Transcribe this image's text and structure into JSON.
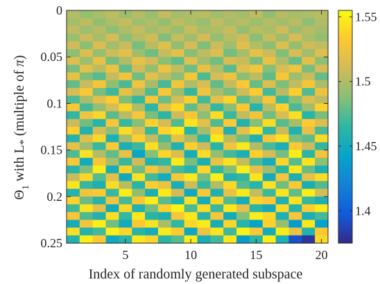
{
  "chart_data": {
    "type": "heatmap",
    "title": "",
    "xlabel": "Index of randomly generated subspace",
    "ylabel": {
      "theta": "Θ",
      "theta_sub": "1",
      "middle": " with L",
      "l_sub": "*",
      "suffix": " (multiple of ",
      "pi": "π",
      "close": ")"
    },
    "x_range": [
      1,
      20
    ],
    "x_ticks": [
      {
        "value": 5,
        "label": "5"
      },
      {
        "value": 10,
        "label": "10"
      },
      {
        "value": 15,
        "label": "15"
      },
      {
        "value": 20,
        "label": "20"
      }
    ],
    "y_range": [
      0,
      0.25
    ],
    "y_ticks": [
      {
        "value": 0,
        "label": "0"
      },
      {
        "value": 0.05,
        "label": "0.05"
      },
      {
        "value": 0.1,
        "label": "0.1"
      },
      {
        "value": 0.15,
        "label": "0.15"
      },
      {
        "value": 0.2,
        "label": "0.2"
      },
      {
        "value": 0.25,
        "label": "0.25"
      }
    ],
    "y_reversed": true,
    "grid": false,
    "colormap": "parula",
    "colormap_stops": [
      "#352a87",
      "#0f5cdd",
      "#1481d6",
      "#06a4ca",
      "#2eb7a4",
      "#87bf77",
      "#d1bb59",
      "#fec832",
      "#f9fb0e"
    ],
    "color_range": [
      1.375,
      1.555
    ],
    "colorbar": {
      "location": "right",
      "ticks": [
        {
          "value": 1.4,
          "label": "1.4"
        },
        {
          "value": 1.45,
          "label": "1.45"
        },
        {
          "value": 1.5,
          "label": "1.5"
        },
        {
          "value": 1.55,
          "label": "1.55"
        }
      ]
    },
    "n_rows": 30,
    "n_cols": 20,
    "row_dtheta": 0.00862,
    "column_offsets": [
      0.004,
      -0.008,
      0.002,
      0.006,
      -0.005,
      0.003,
      -0.006,
      0.008,
      0.005,
      -0.004,
      0.002,
      0.006,
      -0.007,
      0.004,
      0.009,
      -0.003,
      0.001,
      -0.005,
      0.003,
      -0.002
    ],
    "values": [
      [
        1.501,
        1.492,
        1.498,
        1.504,
        1.494,
        1.502,
        1.493,
        1.506,
        1.497,
        1.499,
        1.503,
        1.495,
        1.5,
        1.496,
        1.504,
        1.491,
        1.502,
        1.497,
        1.499,
        1.503
      ],
      [
        1.497,
        1.503,
        1.491,
        1.5,
        1.506,
        1.495,
        1.499,
        1.492,
        1.504,
        1.498,
        1.493,
        1.505,
        1.497,
        1.502,
        1.494,
        1.501,
        1.496,
        1.503,
        1.49,
        1.5
      ],
      [
        1.505,
        1.494,
        1.502,
        1.49,
        1.499,
        1.507,
        1.496,
        1.501,
        1.493,
        1.508,
        1.497,
        1.5,
        1.506,
        1.492,
        1.503,
        1.498,
        1.509,
        1.494,
        1.502,
        1.496
      ],
      [
        1.493,
        1.508,
        1.497,
        1.512,
        1.489,
        1.501,
        1.51,
        1.486,
        1.506,
        1.495,
        1.511,
        1.492,
        1.503,
        1.509,
        1.488,
        1.507,
        1.494,
        1.512,
        1.498,
        1.491
      ],
      [
        1.51,
        1.488,
        1.514,
        1.495,
        1.507,
        1.484,
        1.503,
        1.516,
        1.491,
        1.512,
        1.486,
        1.508,
        1.494,
        1.517,
        1.501,
        1.489,
        1.515,
        1.492,
        1.509,
        1.505
      ],
      [
        1.488,
        1.515,
        1.492,
        1.509,
        1.518,
        1.494,
        1.481,
        1.506,
        1.519,
        1.487,
        1.504,
        1.516,
        1.483,
        1.497,
        1.52,
        1.508,
        1.486,
        1.513,
        1.495,
        1.517
      ],
      [
        1.516,
        1.494,
        1.52,
        1.483,
        1.5,
        1.521,
        1.511,
        1.489,
        1.478,
        1.518,
        1.495,
        1.482,
        1.514,
        1.507,
        1.485,
        1.522,
        1.499,
        1.48,
        1.519,
        1.49
      ],
      [
        1.484,
        1.519,
        1.503,
        1.523,
        1.478,
        1.51,
        1.492,
        1.524,
        1.505,
        1.481,
        1.521,
        1.501,
        1.476,
        1.517,
        1.527,
        1.487,
        1.513,
        1.525,
        1.484,
        1.512
      ],
      [
        1.522,
        1.486,
        1.475,
        1.507,
        1.526,
        1.482,
        1.518,
        1.503,
        1.488,
        1.528,
        1.473,
        1.512,
        1.524,
        1.489,
        1.504,
        1.477,
        1.529,
        1.494,
        1.508,
        1.479
      ],
      [
        1.479,
        1.508,
        1.529,
        1.49,
        1.472,
        1.525,
        1.496,
        1.471,
        1.527,
        1.499,
        1.514,
        1.478,
        1.506,
        1.532,
        1.48,
        1.516,
        1.485,
        1.505,
        1.528,
        1.498
      ],
      [
        1.512,
        1.531,
        1.484,
        1.469,
        1.521,
        1.503,
        1.474,
        1.53,
        1.493,
        1.466,
        1.526,
        1.497,
        1.483,
        1.51,
        1.533,
        1.47,
        1.502,
        1.535,
        1.474,
        1.523
      ],
      [
        1.473,
        1.497,
        1.517,
        1.534,
        1.486,
        1.467,
        1.528,
        1.481,
        1.512,
        1.535,
        1.471,
        1.519,
        1.537,
        1.476,
        1.494,
        1.529,
        1.468,
        1.489,
        1.516,
        1.504
      ],
      [
        1.53,
        1.47,
        1.492,
        1.514,
        1.538,
        1.499,
        1.464,
        1.521,
        1.54,
        1.478,
        1.507,
        1.466,
        1.489,
        1.531,
        1.461,
        1.503,
        1.536,
        1.472,
        1.495,
        1.537
      ],
      [
        1.465,
        1.525,
        1.538,
        1.476,
        1.503,
        1.528,
        1.485,
        1.463,
        1.509,
        1.53,
        1.489,
        1.541,
        1.468,
        1.505,
        1.527,
        1.482,
        1.514,
        1.542,
        1.461,
        1.484
      ],
      [
        1.508,
        1.482,
        1.461,
        1.529,
        1.467,
        1.488,
        1.536,
        1.512,
        1.474,
        1.545,
        1.519,
        1.474,
        1.532,
        1.459,
        1.487,
        1.541,
        1.475,
        1.497,
        1.533,
        1.515
      ],
      [
        1.535,
        1.459,
        1.512,
        1.49,
        1.541,
        1.515,
        1.468,
        1.537,
        1.547,
        1.462,
        1.496,
        1.53,
        1.457,
        1.519,
        1.543,
        1.466,
        1.508,
        1.458,
        1.521,
        1.472
      ],
      [
        1.46,
        1.517,
        1.54,
        1.456,
        1.498,
        1.535,
        1.505,
        1.473,
        1.521,
        1.497,
        1.463,
        1.547,
        1.503,
        1.481,
        1.458,
        1.529,
        1.544,
        1.486,
        1.477,
        1.54
      ],
      [
        1.521,
        1.494,
        1.467,
        1.532,
        1.454,
        1.468,
        1.542,
        1.491,
        1.458,
        1.535,
        1.509,
        1.461,
        1.526,
        1.546,
        1.5,
        1.471,
        1.455,
        1.531,
        1.509,
        1.465
      ],
      [
        1.474,
        1.543,
        1.501,
        1.478,
        1.522,
        1.445,
        1.487,
        1.538,
        1.515,
        1.452,
        1.541,
        1.492,
        1.47,
        1.455,
        1.535,
        1.512,
        1.483,
        1.549,
        1.463,
        1.527
      ],
      [
        1.532,
        1.451,
        1.529,
        1.498,
        1.467,
        1.51,
        1.459,
        1.466,
        1.547,
        1.484,
        1.456,
        1.523,
        1.543,
        1.506,
        1.472,
        1.452,
        1.537,
        1.476,
        1.544,
        1.49
      ],
      [
        1.462,
        1.486,
        1.548,
        1.453,
        1.537,
        1.481,
        1.529,
        1.504,
        1.471,
        1.46,
        1.538,
        1.466,
        1.487,
        1.549,
        1.519,
        1.495,
        1.463,
        1.546,
        1.48,
        1.456
      ],
      [
        1.507,
        1.538,
        1.475,
        1.517,
        1.449,
        1.544,
        1.47,
        1.451,
        1.53,
        1.546,
        1.482,
        1.549,
        1.458,
        1.466,
        1.545,
        1.451,
        1.528,
        1.455,
        1.52,
        1.541
      ],
      [
        1.545,
        1.467,
        1.456,
        1.541,
        1.503,
        1.462,
        1.534,
        1.523,
        1.454,
        1.509,
        1.467,
        1.501,
        1.539,
        1.475,
        1.461,
        1.543,
        1.482,
        1.531,
        1.453,
        1.474
      ],
      [
        1.459,
        1.526,
        1.533,
        1.468,
        1.548,
        1.491,
        1.455,
        1.547,
        1.512,
        1.448,
        1.53,
        1.457,
        1.522,
        1.547,
        1.506,
        1.469,
        1.545,
        1.478,
        1.549,
        1.512
      ],
      [
        1.536,
        1.48,
        1.462,
        1.525,
        1.471,
        1.53,
        1.548,
        1.476,
        1.459,
        1.544,
        1.452,
        1.539,
        1.474,
        1.453,
        1.538,
        1.532,
        1.458,
        1.543,
        1.467,
        1.456
      ],
      [
        1.469,
        1.545,
        1.519,
        1.45,
        1.539,
        1.458,
        1.483,
        1.535,
        1.551,
        1.473,
        1.54,
        1.468,
        1.546,
        1.519,
        1.462,
        1.449,
        1.54,
        1.462,
        1.534,
        1.548
      ],
      [
        1.53,
        1.473,
        1.458,
        1.542,
        1.466,
        1.547,
        1.462,
        1.456,
        1.528,
        1.546,
        1.46,
        1.528,
        1.451,
        1.487,
        1.549,
        1.539,
        1.456,
        1.53,
        1.454,
        1.471
      ],
      [
        1.452,
        1.527,
        1.549,
        1.482,
        1.451,
        1.531,
        1.544,
        1.498,
        1.465,
        1.539,
        1.548,
        1.453,
        1.538,
        1.461,
        1.443,
        1.536,
        1.492,
        1.437,
        1.546,
        1.442
      ],
      [
        1.542,
        1.459,
        1.47,
        1.55,
        1.538,
        1.462,
        1.452,
        1.547,
        1.534,
        1.446,
        1.524,
        1.545,
        1.469,
        1.551,
        1.531,
        1.451,
        1.548,
        1.523,
        1.459,
        1.532
      ],
      [
        1.459,
        1.549,
        1.532,
        1.448,
        1.461,
        1.546,
        1.538,
        1.463,
        1.475,
        1.548,
        1.453,
        1.47,
        1.546,
        1.438,
        1.462,
        1.549,
        1.455,
        1.393,
        1.381,
        1.54
      ]
    ]
  }
}
